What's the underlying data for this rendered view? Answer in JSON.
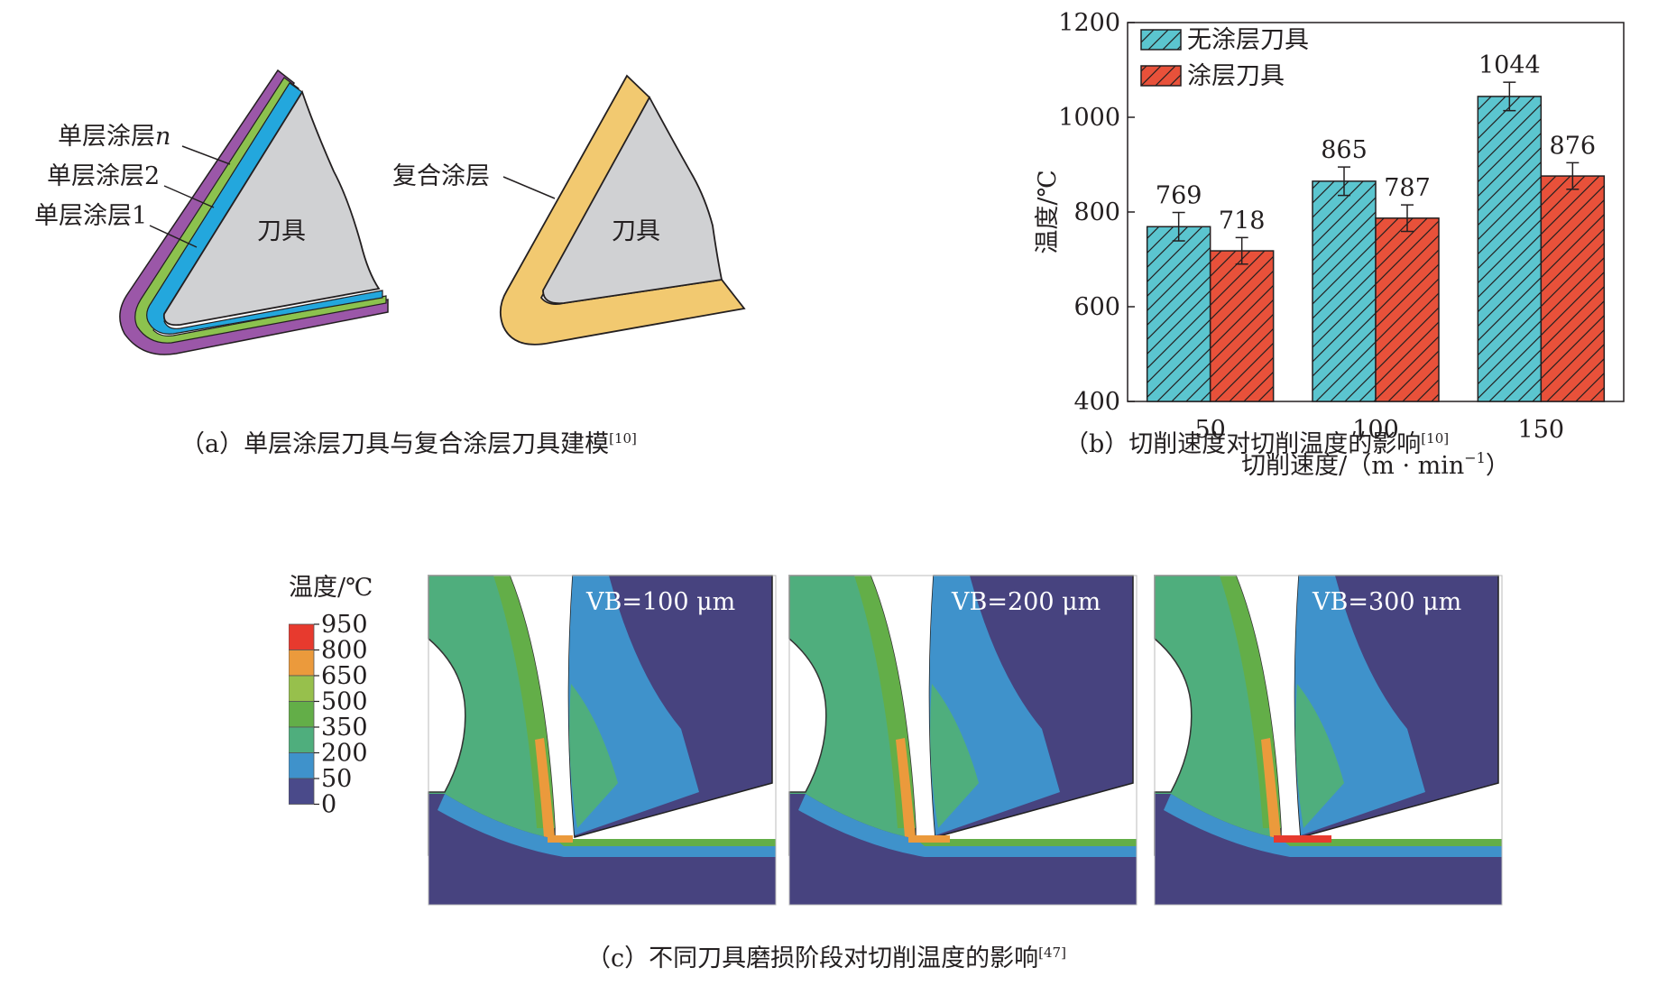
{
  "panel_a": {
    "left_labels": [
      "单层涂层",
      "单层涂层2",
      "单层涂层1"
    ],
    "left_label_n_suffix": "n",
    "tool_label_left": "刀具",
    "right_label": "复合涂层",
    "tool_label_right": "刀具",
    "caption": "（a）单层涂层刀具与复合涂层刀具建模",
    "caption_ref": "[10]",
    "colors": {
      "layer_n": "#9b57a8",
      "layer_2": "#8cc24e",
      "layer_1": "#23a7dd",
      "tool": "#d0d1d3",
      "composite": "#f2c970"
    }
  },
  "panel_b": {
    "caption": "（b）切削速度对切削温度的影响",
    "caption_ref": "[10]",
    "chart_data": {
      "type": "bar",
      "categories": [
        "50",
        "100",
        "150"
      ],
      "series": [
        {
          "name": "无涂层刀具",
          "values": [
            769,
            865,
            1044
          ],
          "labels": [
            "769",
            "865",
            "1044"
          ],
          "color": "#5bc5cf",
          "hatch": true
        },
        {
          "name": "涂层刀具",
          "values": [
            718,
            787,
            876
          ],
          "labels": [
            "718",
            "787",
            "876"
          ],
          "color": "#e8513a",
          "hatch": true
        }
      ],
      "error": [
        [
          30,
          30,
          30
        ],
        [
          28,
          28,
          28
        ]
      ],
      "ylabel": "温度/℃",
      "xlabel": "切削速度/（m · min",
      "xlabel_sup": "−1",
      "xlabel_end": "）",
      "ylim": [
        400,
        1200
      ],
      "yticks": [
        "400",
        "600",
        "800",
        "1000",
        "1200"
      ],
      "legend_position": "top-left"
    }
  },
  "panel_c": {
    "legend_title": "温度/℃",
    "legend_levels": [
      "950",
      "800",
      "650",
      "500",
      "350",
      "200",
      "50",
      "0"
    ],
    "legend_colors": [
      "#e73a2e",
      "#eb9a3c",
      "#97c04c",
      "#63ae48",
      "#4fae7d",
      "#3f92cb",
      "#4a4a8a"
    ],
    "sim_labels": [
      "VB=100 μm",
      "VB=200 μm",
      "VB=300 μm"
    ],
    "caption": "（c）不同刀具磨损阶段对切削温度的影响",
    "caption_ref": "[47]"
  }
}
